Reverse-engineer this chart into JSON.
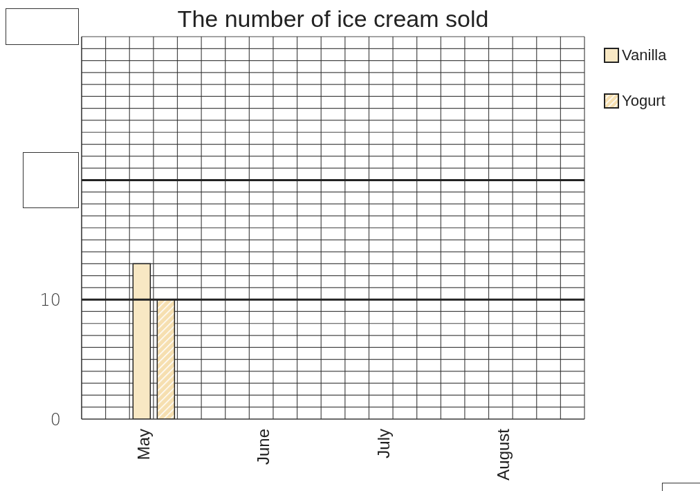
{
  "chart_data": {
    "type": "bar",
    "title": "The number of ice cream sold",
    "categories": [
      "May",
      "June",
      "July",
      "August"
    ],
    "series": [
      {
        "name": "Vanilla",
        "color": "#f8e8c4",
        "values": [
          13,
          null,
          null,
          null
        ]
      },
      {
        "name": "Yogurt",
        "color": "#f6dfb0",
        "values": [
          10,
          null,
          null,
          null
        ]
      }
    ],
    "ylim": [
      0,
      32
    ],
    "yticks": [
      0,
      {
        "value": 1,
        "label": null
      },
      {
        "value": 2,
        "label": null
      },
      {
        "value": 3,
        "label": null
      },
      {
        "value": 4,
        "label": null
      },
      {
        "value": 5,
        "label": null
      },
      {
        "value": 6,
        "label": null
      },
      {
        "value": 7,
        "label": null
      },
      {
        "value": 8,
        "label": null
      },
      {
        "value": 9,
        "label": null
      },
      10,
      {
        "value": 11,
        "label": null
      },
      {
        "value": 12,
        "label": null
      },
      {
        "value": 13,
        "label": null
      },
      {
        "value": 14,
        "label": null
      },
      {
        "value": 15,
        "label": null
      },
      {
        "value": 16,
        "label": null
      },
      {
        "value": 17,
        "label": null
      },
      {
        "value": 18,
        "label": null
      },
      {
        "value": 19,
        "label": null
      },
      {
        "value": 20,
        "label": null
      },
      {
        "value": 21,
        "label": null
      },
      {
        "value": 22,
        "label": null
      },
      {
        "value": 23,
        "label": null
      },
      {
        "value": 24,
        "label": null
      },
      {
        "value": 25,
        "label": null
      },
      {
        "value": 26,
        "label": null
      },
      {
        "value": 27,
        "label": null
      },
      {
        "value": 28,
        "label": null
      },
      {
        "value": 29,
        "label": null
      },
      {
        "value": 30,
        "label": null
      },
      {
        "value": 31,
        "label": null
      },
      {
        "value": 32,
        "label": null
      }
    ],
    "grid": true,
    "legend": "top right"
  }
}
